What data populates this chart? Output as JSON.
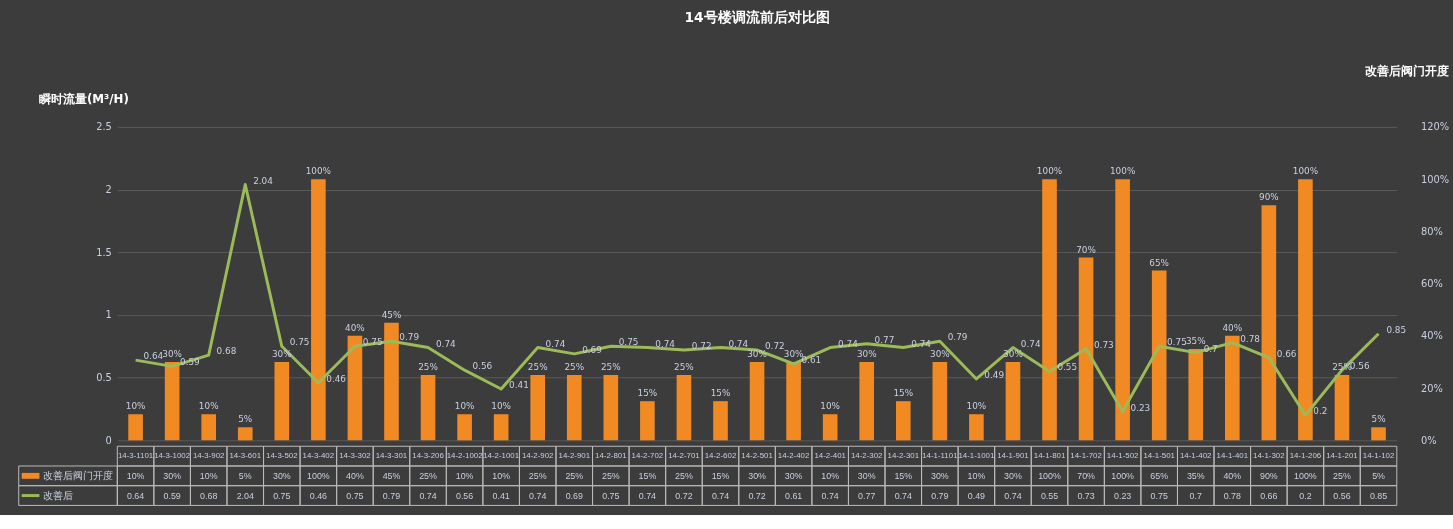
{
  "chart_data": {
    "type": "bar",
    "title": "14号楼调流前后对比图",
    "ylabel": "瞬时流量(M³/H)",
    "y2label": "改善后阀门开度",
    "categories": [
      "14-3-1101",
      "14-3-1002",
      "14-3-902",
      "14-3-601",
      "14-3-502",
      "14-3-402",
      "14-3-302",
      "14-3-301",
      "14-3-206",
      "14-2-1002",
      "14-2-1001",
      "14-2-902",
      "14-2-901",
      "14-2-801",
      "14-2-702",
      "14-2-701",
      "14-2-602",
      "14-2-501",
      "14-2-402",
      "14-2-401",
      "14-2-302",
      "14-2-301",
      "14-1-1101",
      "14-1-1001",
      "14-1-901",
      "14-1-801",
      "14-1-702",
      "14-1-502",
      "14-1-501",
      "14-1-402",
      "14-1-401",
      "14-1-302",
      "14-1-206",
      "14-1-201",
      "14-1-102"
    ],
    "series": [
      {
        "name": "改善后阀门开度",
        "axis": "y2",
        "color": "#f28a24",
        "values": [
          10,
          30,
          10,
          5,
          30,
          100,
          40,
          45,
          25,
          10,
          10,
          25,
          25,
          25,
          15,
          25,
          15,
          30,
          30,
          10,
          30,
          15,
          30,
          10,
          30,
          100,
          70,
          100,
          65,
          35,
          40,
          90,
          100,
          25,
          5
        ],
        "value_labels": [
          "10%",
          "30%",
          "10%",
          "5%",
          "30%",
          "100%",
          "40%",
          "45%",
          "25%",
          "10%",
          "10%",
          "25%",
          "25%",
          "25%",
          "15%",
          "25%",
          "15%",
          "30%",
          "30%",
          "10%",
          "30%",
          "15%",
          "30%",
          "10%",
          "30%",
          "100%",
          "70%",
          "100%",
          "65%",
          "35%",
          "40%",
          "90%",
          "100%",
          "25%",
          "5%"
        ]
      },
      {
        "name": "改善后",
        "type": "line",
        "color": "#9bbb59",
        "values": [
          0.64,
          0.59,
          0.68,
          2.04,
          0.75,
          0.46,
          0.75,
          0.79,
          0.74,
          0.56,
          0.41,
          0.74,
          0.69,
          0.75,
          0.74,
          0.72,
          0.74,
          0.72,
          0.61,
          0.74,
          0.77,
          0.74,
          0.79,
          0.49,
          0.74,
          0.55,
          0.73,
          0.23,
          0.75,
          0.7,
          0.78,
          0.66,
          0.2,
          0.56,
          0.85
        ],
        "value_labels": [
          "0.64",
          "0.59",
          "0.68",
          "2.04",
          "0.75",
          "0.46",
          "0.75",
          "0.79",
          "0.74",
          "0.56",
          "0.41",
          "0.74",
          "0.69",
          "0.75",
          "0.74",
          "0.72",
          "0.74",
          "0.72",
          "0.61",
          "0.74",
          "0.77",
          "0.74",
          "0.79",
          "0.49",
          "0.74",
          "0.55",
          "0.73",
          "0.23",
          "0.75",
          "0.7",
          "0.78",
          "0.66",
          "0.2",
          "0.56",
          "0.85"
        ]
      }
    ],
    "ylim": [
      0,
      2.5
    ],
    "yticks": [
      0,
      0.5,
      1,
      1.5,
      2,
      2.5
    ],
    "y2lim": [
      0,
      120
    ],
    "y2ticks": [
      {
        "value": 0,
        "label": "0%"
      },
      {
        "value": 20,
        "label": "20%"
      },
      {
        "value": 40,
        "label": "40%"
      },
      {
        "value": 60,
        "label": "60%"
      },
      {
        "value": 80,
        "label": "80%"
      },
      {
        "value": 100,
        "label": "100%"
      },
      {
        "value": 120,
        "label": "120%"
      }
    ],
    "grid": "y",
    "legend": "bottom"
  }
}
